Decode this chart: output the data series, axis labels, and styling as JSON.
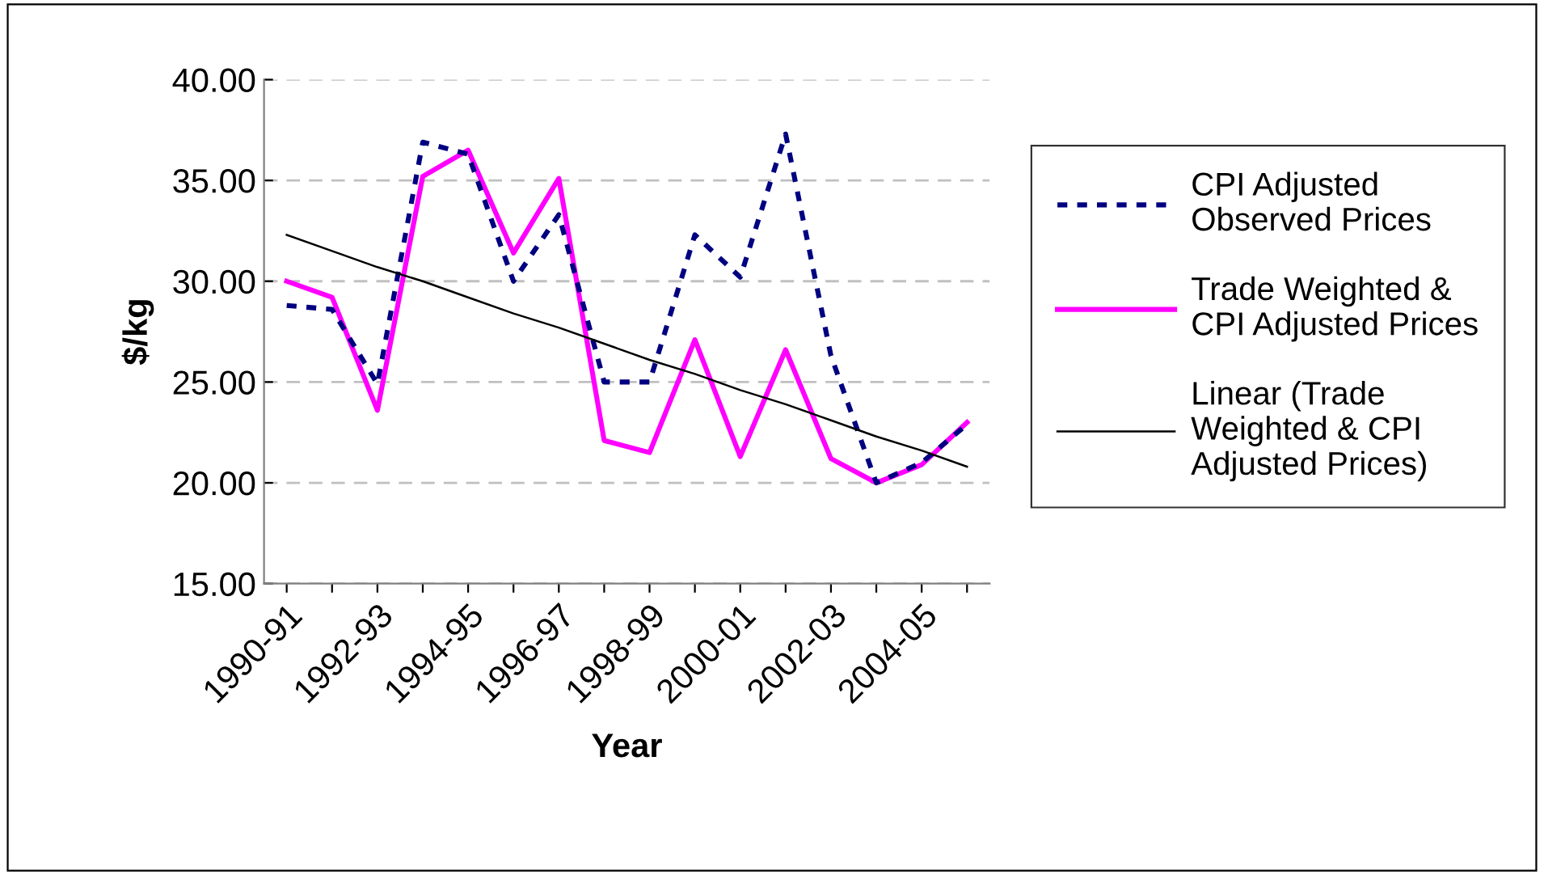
{
  "chart_data": {
    "type": "line",
    "xlabel": "Year",
    "ylabel": "$/kg",
    "categories": [
      "1990-91",
      null,
      "1992-93",
      null,
      "1994-95",
      null,
      "1996-97",
      null,
      "1998-99",
      null,
      "2000-01",
      null,
      "2002-03",
      null,
      "2004-05",
      null
    ],
    "series": [
      {
        "name": "CPI Adjusted\nObserved Prices",
        "color": "#000080",
        "line_style": "dotted",
        "values": [
          28.8,
          28.6,
          24.9,
          36.9,
          36.3,
          30.0,
          33.3,
          25.0,
          25.0,
          32.3,
          30.2,
          37.3,
          26.3,
          20.0,
          21.0,
          22.9
        ]
      },
      {
        "name": "Trade Weighted &\nCPI Adjusted Prices",
        "color": "#ff00ff",
        "line_style": "solid",
        "values": [
          30.0,
          29.2,
          23.6,
          35.2,
          36.5,
          31.4,
          35.1,
          22.1,
          21.5,
          27.1,
          21.3,
          26.6,
          21.2,
          20.0,
          20.9,
          23.0
        ]
      },
      {
        "name": "Linear (Trade\nWeighted & CPI\nAdjusted Prices)",
        "color": "#000000",
        "line_style": "solid",
        "values": [
          32.3,
          31.5,
          30.7,
          30.0,
          29.2,
          28.4,
          27.7,
          26.9,
          26.1,
          25.4,
          24.6,
          23.9,
          23.1,
          22.3,
          21.6,
          20.8
        ]
      }
    ],
    "ylim": [
      15,
      40
    ],
    "yticks": [
      {
        "value": 15,
        "label": "15.00"
      },
      {
        "value": 20,
        "label": "20.00"
      },
      {
        "value": 25,
        "label": "25.00"
      },
      {
        "value": 30,
        "label": "30.00"
      },
      {
        "value": 35,
        "label": "35.00"
      },
      {
        "value": 40,
        "label": "40.00"
      }
    ],
    "grid": "y",
    "legend": "right",
    "marker": "none"
  }
}
